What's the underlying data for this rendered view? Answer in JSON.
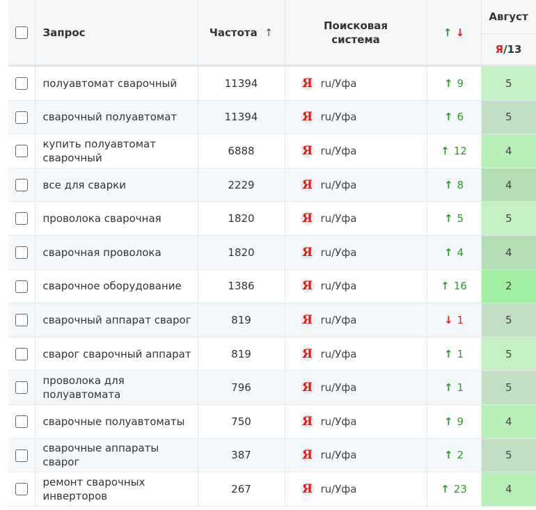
{
  "header": {
    "query": "Запрос",
    "frequency": "Частота",
    "frequency_sort": "↑",
    "engine_line1": "Поисковая",
    "engine_line2": "система",
    "diff_up": "↑",
    "diff_down": "↓",
    "month": "Август",
    "engine_short": "Я",
    "position_total": "/13"
  },
  "rows": [
    {
      "query": "полуавтомат сварочный",
      "freq": "11394",
      "engine": "Я",
      "region": "ru/Уфа",
      "dir": "up",
      "arrow": "↑",
      "change": "9",
      "pos": "5",
      "pos_color": "#c4f0c4"
    },
    {
      "query": "сварочный полуавтомат",
      "freq": "11394",
      "engine": "Я",
      "region": "ru/Уфа",
      "dir": "up",
      "arrow": "↑",
      "change": "6",
      "pos": "5",
      "pos_color": "#c3dfc3"
    },
    {
      "query": "купить полуавтомат сварочный",
      "freq": "6888",
      "engine": "Я",
      "region": "ru/Уфа",
      "dir": "up",
      "arrow": "↑",
      "change": "12",
      "pos": "4",
      "pos_color": "#b8eeb8"
    },
    {
      "query": "все для сварки",
      "freq": "2229",
      "engine": "Я",
      "region": "ru/Уфа",
      "dir": "up",
      "arrow": "↑",
      "change": "8",
      "pos": "4",
      "pos_color": "#b5dcb5"
    },
    {
      "query": "проволока сварочная",
      "freq": "1820",
      "engine": "Я",
      "region": "ru/Уфа",
      "dir": "up",
      "arrow": "↑",
      "change": "5",
      "pos": "5",
      "pos_color": "#c4f0c4"
    },
    {
      "query": "сварочная проволока",
      "freq": "1820",
      "engine": "Я",
      "region": "ru/Уфа",
      "dir": "up",
      "arrow": "↑",
      "change": "4",
      "pos": "4",
      "pos_color": "#b5dcb5"
    },
    {
      "query": "сварочное оборудование",
      "freq": "1386",
      "engine": "Я",
      "region": "ru/Уфа",
      "dir": "up",
      "arrow": "↑",
      "change": "16",
      "pos": "2",
      "pos_color": "#a2eea2"
    },
    {
      "query": "сварочный аппарат сварог",
      "freq": "819",
      "engine": "Я",
      "region": "ru/Уфа",
      "dir": "down",
      "arrow": "↓",
      "change": "1",
      "pos": "5",
      "pos_color": "#c3dfc3"
    },
    {
      "query": "сварог сварочный аппарат",
      "freq": "819",
      "engine": "Я",
      "region": "ru/Уфа",
      "dir": "up",
      "arrow": "↑",
      "change": "1",
      "pos": "5",
      "pos_color": "#c4f0c4"
    },
    {
      "query": "проволока для полуавтомата",
      "freq": "796",
      "engine": "Я",
      "region": "ru/Уфа",
      "dir": "up",
      "arrow": "↑",
      "change": "1",
      "pos": "5",
      "pos_color": "#c3dfc3"
    },
    {
      "query": "сварочные полуавтоматы",
      "freq": "750",
      "engine": "Я",
      "region": "ru/Уфа",
      "dir": "up",
      "arrow": "↑",
      "change": "9",
      "pos": "4",
      "pos_color": "#b8eeb8"
    },
    {
      "query": "сварочные аппараты сварог",
      "freq": "387",
      "engine": "Я",
      "region": "ru/Уфа",
      "dir": "up",
      "arrow": "↑",
      "change": "2",
      "pos": "5",
      "pos_color": "#c3dfc3"
    },
    {
      "query": "ремонт сварочных инверторов",
      "freq": "267",
      "engine": "Я",
      "region": "ru/Уфа",
      "dir": "up",
      "arrow": "↑",
      "change": "23",
      "pos": "4",
      "pos_color": "#b8eeb8"
    }
  ]
}
